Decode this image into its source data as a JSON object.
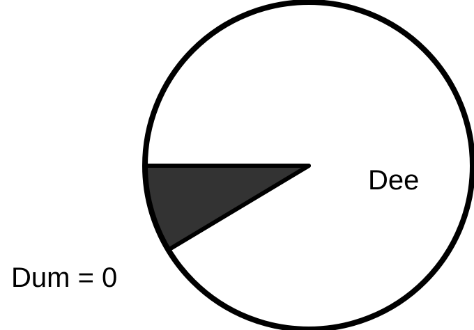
{
  "chart_data": {
    "type": "pie",
    "slices": [
      {
        "label": "Dee",
        "value": 91.4,
        "color": "#ffffff"
      },
      {
        "label": "",
        "value": 8.6,
        "color": "#333333"
      }
    ],
    "start_angle_deg": 180,
    "direction": "clockwise",
    "annotations": {
      "dee_label": "Dee",
      "dum_label": "Dum = 0"
    },
    "colors": {
      "outline": "#000000",
      "background": "#ffffff"
    }
  }
}
